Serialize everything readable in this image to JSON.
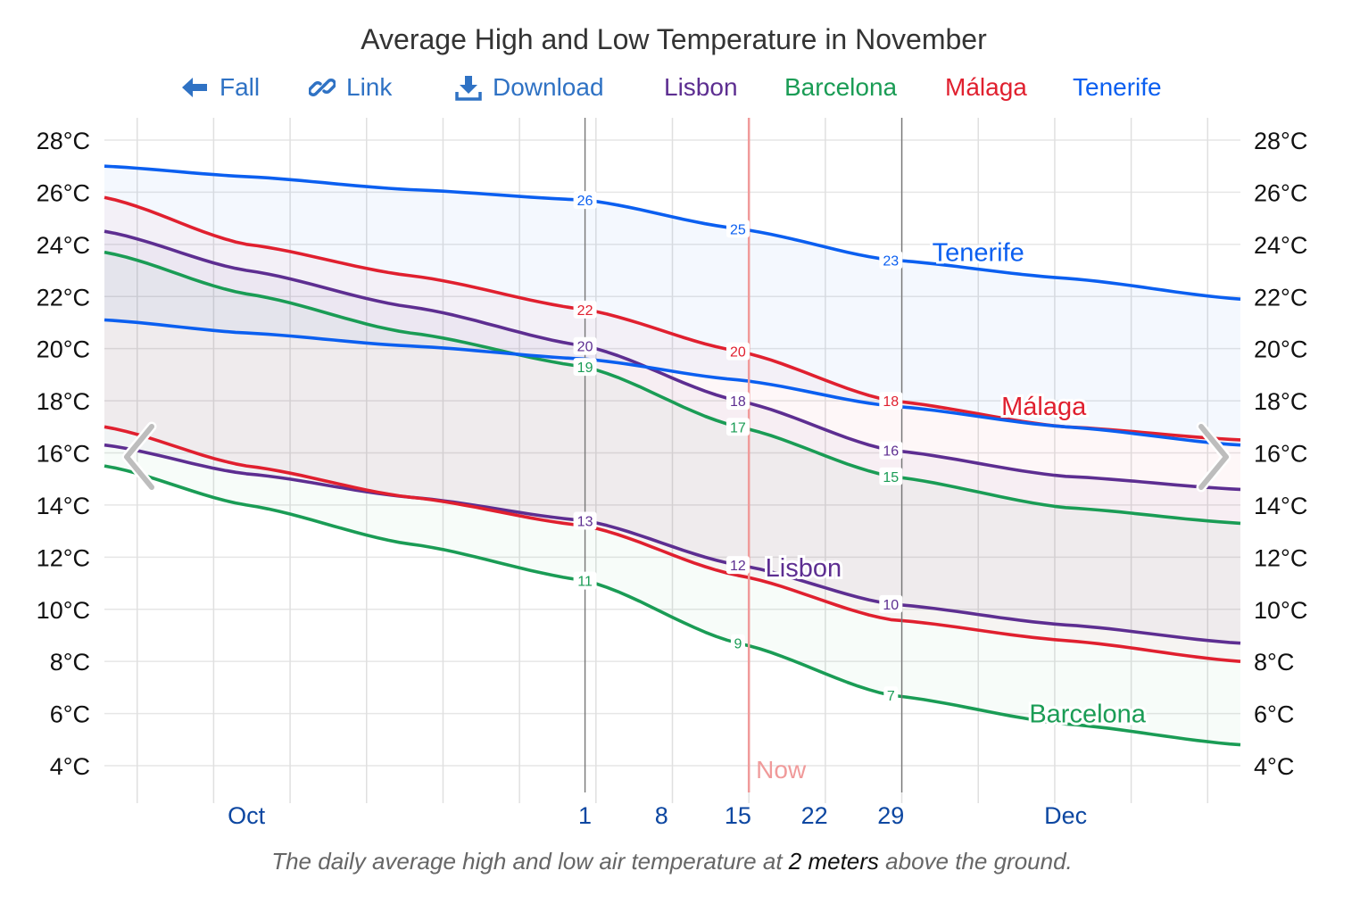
{
  "title": "Average High and Low Temperature in November",
  "toolbar": {
    "back_label": "Fall",
    "link_label": "Link",
    "download_label": "Download"
  },
  "footnote": {
    "before": "The daily average high and low air temperature at ",
    "emph": "2 meters",
    "after": " above the ground."
  },
  "now_label": "Now",
  "chart_data": {
    "type": "line",
    "y_unit": "°C",
    "ylim": [
      3,
      28.5
    ],
    "y_ticks": [
      4,
      6,
      8,
      10,
      12,
      14,
      16,
      18,
      20,
      22,
      24,
      26,
      28
    ],
    "y_tick_labels": [
      "4°C",
      "6°C",
      "8°C",
      "10°C",
      "12°C",
      "14°C",
      "16°C",
      "18°C",
      "20°C",
      "22°C",
      "24°C",
      "26°C",
      "28°C"
    ],
    "x_range": [
      "2024-09-18",
      "2024-12-31"
    ],
    "x_ticks": [
      {
        "date": "2024-10-01",
        "label": "Oct"
      },
      {
        "date": "2024-11-01",
        "label": "1"
      },
      {
        "date": "2024-11-08",
        "label": "8"
      },
      {
        "date": "2024-11-15",
        "label": "15"
      },
      {
        "date": "2024-11-22",
        "label": "22"
      },
      {
        "date": "2024-11-29",
        "label": "29"
      },
      {
        "date": "2024-12-15",
        "label": "Dec"
      }
    ],
    "month_boundaries": [
      "2024-11-01",
      "2024-11-30"
    ],
    "now": "2024-11-16",
    "grid": true,
    "legend": [
      "Lisbon",
      "Barcelona",
      "Málaga",
      "Tenerife"
    ],
    "colors": {
      "Lisbon": "#5d2e91",
      "Barcelona": "#1a9c55",
      "Málaga": "#e0202f",
      "Tenerife": "#0b5ff0",
      "now_line": "#f09a9a",
      "link": "#2f72c4",
      "x_tick": "#0d47a1"
    },
    "series_names": {
      "Lisbon": "Lisbon",
      "Barcelona": "Barcelona",
      "Málaga": "Málaga",
      "Tenerife": "Tenerife"
    },
    "series": [
      {
        "name": "Tenerife",
        "high": {
          "x": [
            "2024-09-18",
            "2024-10-01",
            "2024-10-16",
            "2024-11-01",
            "2024-11-15",
            "2024-11-29",
            "2024-12-15",
            "2024-12-31"
          ],
          "y": [
            27.0,
            26.6,
            26.1,
            25.7,
            24.6,
            23.4,
            22.7,
            21.9
          ]
        },
        "low": {
          "x": [
            "2024-09-18",
            "2024-10-01",
            "2024-10-16",
            "2024-11-01",
            "2024-11-15",
            "2024-11-29",
            "2024-12-15",
            "2024-12-31"
          ],
          "y": [
            21.1,
            20.6,
            20.1,
            19.6,
            18.8,
            17.8,
            17.0,
            16.3
          ]
        },
        "labels": [
          {
            "date": "2024-11-01",
            "value": 26
          },
          {
            "date": "2024-11-15",
            "value": 25
          },
          {
            "date": "2024-11-29",
            "value": 23
          }
        ]
      },
      {
        "name": "Málaga",
        "high": {
          "x": [
            "2024-09-18",
            "2024-10-01",
            "2024-10-16",
            "2024-11-01",
            "2024-11-15",
            "2024-11-29",
            "2024-12-15",
            "2024-12-31"
          ],
          "y": [
            25.8,
            24.0,
            22.8,
            21.5,
            19.9,
            18.0,
            17.0,
            16.5
          ]
        },
        "low": {
          "x": [
            "2024-09-18",
            "2024-10-01",
            "2024-10-16",
            "2024-11-01",
            "2024-11-15",
            "2024-11-29",
            "2024-12-15",
            "2024-12-31"
          ],
          "y": [
            17.0,
            15.5,
            14.3,
            13.2,
            11.3,
            9.6,
            8.8,
            8.0
          ]
        },
        "labels": [
          {
            "date": "2024-11-01",
            "value": 22
          },
          {
            "date": "2024-11-15",
            "value": 20
          },
          {
            "date": "2024-11-29",
            "value": 18
          }
        ]
      },
      {
        "name": "Lisbon",
        "high": {
          "x": [
            "2024-09-18",
            "2024-10-01",
            "2024-10-16",
            "2024-11-01",
            "2024-11-15",
            "2024-11-29",
            "2024-12-15",
            "2024-12-31"
          ],
          "y": [
            24.5,
            23.0,
            21.6,
            20.1,
            18.0,
            16.1,
            15.1,
            14.6
          ]
        },
        "low": {
          "x": [
            "2024-09-18",
            "2024-10-01",
            "2024-10-16",
            "2024-11-01",
            "2024-11-15",
            "2024-11-29",
            "2024-12-15",
            "2024-12-31"
          ],
          "y": [
            16.3,
            15.2,
            14.3,
            13.4,
            11.7,
            10.2,
            9.4,
            8.7
          ]
        },
        "labels": [
          {
            "date": "2024-11-01",
            "value": 20
          },
          {
            "date": "2024-11-15",
            "value": 18
          },
          {
            "date": "2024-11-29",
            "value": 16
          }
        ]
      },
      {
        "name": "Barcelona",
        "high": {
          "x": [
            "2024-09-18",
            "2024-10-01",
            "2024-10-16",
            "2024-11-01",
            "2024-11-15",
            "2024-11-29",
            "2024-12-15",
            "2024-12-31"
          ],
          "y": [
            23.7,
            22.1,
            20.6,
            19.3,
            17.0,
            15.1,
            13.9,
            13.3
          ]
        },
        "low": {
          "x": [
            "2024-09-18",
            "2024-10-01",
            "2024-10-16",
            "2024-11-01",
            "2024-11-15",
            "2024-11-29",
            "2024-12-15",
            "2024-12-31"
          ],
          "y": [
            15.5,
            14.0,
            12.5,
            11.1,
            8.7,
            6.7,
            5.6,
            4.8
          ]
        },
        "labels": [
          {
            "date": "2024-11-01",
            "value": 19
          },
          {
            "date": "2024-11-15",
            "value": 17
          },
          {
            "date": "2024-11-29",
            "value": 15
          }
        ]
      },
      {
        "name": "Barcelona-low-labels",
        "labels": [
          {
            "date": "2024-11-01",
            "value": 11
          },
          {
            "date": "2024-11-15",
            "value": 9
          },
          {
            "date": "2024-11-29",
            "value": 7
          }
        ]
      },
      {
        "name": "Lisbon-low-labels",
        "labels": [
          {
            "date": "2024-11-01",
            "value": 13
          },
          {
            "date": "2024-11-15",
            "value": 12
          },
          {
            "date": "2024-11-29",
            "value": 10
          }
        ]
      }
    ],
    "series_label_positions": {
      "Tenerife": {
        "date": "2024-12-07",
        "value": 23.7
      },
      "Málaga": {
        "date": "2024-12-13",
        "value": 17.8
      },
      "Lisbon": {
        "date": "2024-11-21",
        "value": 11.6
      },
      "Barcelona": {
        "date": "2024-12-17",
        "value": 6.0
      }
    }
  }
}
